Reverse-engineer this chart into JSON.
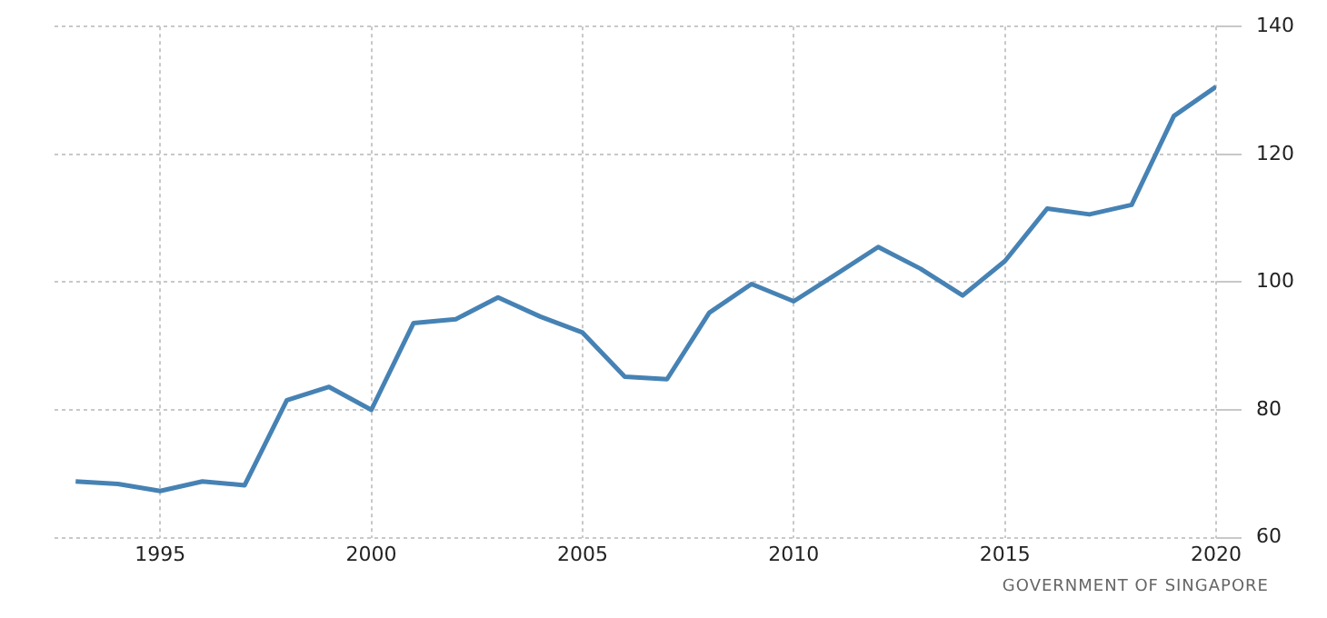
{
  "chart_data": {
    "type": "line",
    "x": [
      1993,
      1994,
      1995,
      1996,
      1997,
      1998,
      1999,
      2000,
      2001,
      2002,
      2003,
      2004,
      2005,
      2006,
      2007,
      2008,
      2009,
      2010,
      2011,
      2012,
      2013,
      2014,
      2015,
      2016,
      2017,
      2018,
      2019,
      2020
    ],
    "series": [
      {
        "color": "#4682b4",
        "values": [
          68.8,
          68.4,
          67.3,
          68.8,
          68.2,
          81.5,
          83.6,
          80,
          93.6,
          94.2,
          97.6,
          94.6,
          92.1,
          85.2,
          84.8,
          95.2,
          99.7,
          97,
          101.2,
          105.5,
          102.1,
          97.9,
          103.3,
          111.5,
          110.6,
          112.1,
          126,
          130.6
        ]
      }
    ],
    "xlim": [
      1992.5,
      2020
    ],
    "xticks": [
      1995,
      2000,
      2005,
      2010,
      2015,
      2020
    ],
    "ylim": [
      60,
      140
    ],
    "yticks": [
      60,
      80,
      100,
      120,
      140
    ],
    "grid": true,
    "legend": false,
    "marker": "none",
    "line_style": "solid",
    "annotations": [
      "GOVERNMENT OF SINGAPORE"
    ]
  }
}
